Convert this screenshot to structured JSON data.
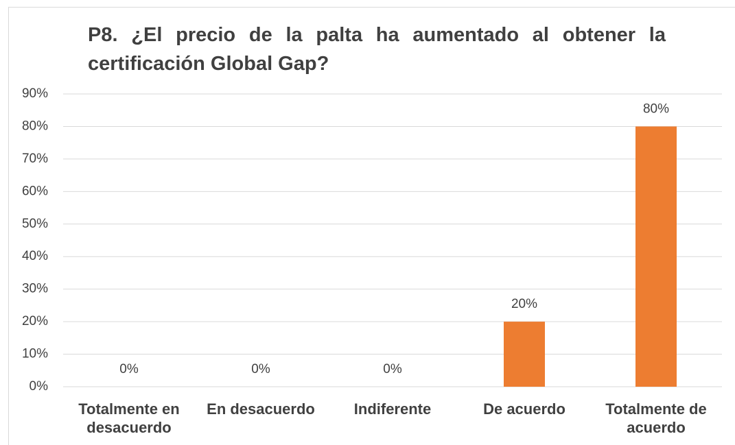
{
  "chart_data": {
    "type": "bar",
    "title": "P8. ¿El precio de la palta ha aumentado al obtener la certificación Global Gap?",
    "categories": [
      "Totalmente en desacuerdo",
      "En desacuerdo",
      "Indiferente",
      "De acuerdo",
      "Totalmente de acuerdo"
    ],
    "values": [
      0,
      0,
      0,
      20,
      80
    ],
    "value_labels": [
      "0%",
      "0%",
      "0%",
      "20%",
      "80%"
    ],
    "color": "#ed7d31",
    "ylim": [
      0,
      90
    ],
    "yticks": [
      {
        "value": 0,
        "label": "0%"
      },
      {
        "value": 10,
        "label": "10%"
      },
      {
        "value": 20,
        "label": "20%"
      },
      {
        "value": 30,
        "label": "30%"
      },
      {
        "value": 40,
        "label": "40%"
      },
      {
        "value": 50,
        "label": "50%"
      },
      {
        "value": 60,
        "label": "60%"
      },
      {
        "value": 70,
        "label": "70%"
      },
      {
        "value": 80,
        "label": "80%"
      },
      {
        "value": 90,
        "label": "90%"
      }
    ],
    "grid": true
  }
}
